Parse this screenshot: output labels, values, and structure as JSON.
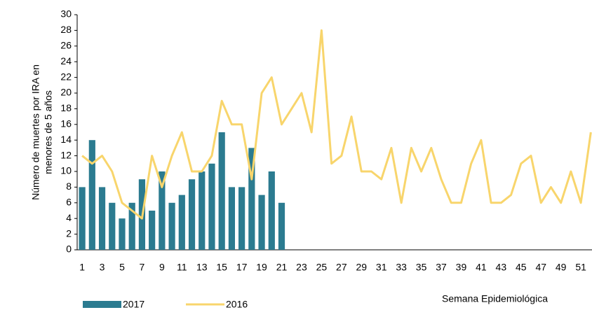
{
  "chart_data": {
    "type": "bar+line",
    "ylabel": [
      "Número de muertes por IRA en",
      "menores de 5 años"
    ],
    "xlabel": "Semana Epidemiológica",
    "categories": [
      1,
      null,
      3,
      null,
      5,
      null,
      7,
      null,
      9,
      null,
      11,
      null,
      13,
      null,
      15,
      null,
      17,
      null,
      19,
      null,
      21,
      null,
      23,
      null,
      25,
      null,
      27,
      null,
      29,
      null,
      31,
      null,
      33,
      null,
      35,
      null,
      37,
      null,
      39,
      null,
      41,
      null,
      43,
      null,
      45,
      null,
      47,
      null,
      49,
      null,
      51,
      null
    ],
    "series": [
      {
        "name": "2017",
        "kind": "bar",
        "color": "#2b7b90",
        "values": [
          8,
          14,
          8,
          6,
          4,
          6,
          9,
          5,
          10,
          6,
          7,
          9,
          10,
          11,
          15,
          8,
          8,
          13,
          7,
          10,
          6,
          null,
          null,
          null,
          null,
          null,
          null,
          null,
          null,
          null,
          null,
          null,
          null,
          null,
          null,
          null,
          null,
          null,
          null,
          null,
          null,
          null,
          null,
          null,
          null,
          null,
          null,
          null,
          null,
          null,
          null,
          null
        ]
      },
      {
        "name": "2016",
        "kind": "line",
        "color": "#f8d56c",
        "values": [
          12,
          11,
          12,
          10,
          6,
          5,
          4,
          12,
          8,
          12,
          15,
          10,
          10,
          12,
          19,
          16,
          16,
          9,
          20,
          22,
          16,
          18,
          20,
          15,
          28,
          11,
          12,
          17,
          10,
          10,
          9,
          13,
          6,
          13,
          10,
          13,
          9,
          6,
          6,
          11,
          14,
          6,
          6,
          7,
          11,
          12,
          6,
          8,
          6,
          10,
          6,
          15
        ]
      }
    ],
    "ylim": [
      0,
      30
    ],
    "yticks": [
      0,
      2,
      4,
      6,
      8,
      10,
      12,
      14,
      16,
      18,
      20,
      22,
      24,
      26,
      28,
      30
    ],
    "grid": false,
    "legend": "bottom"
  }
}
